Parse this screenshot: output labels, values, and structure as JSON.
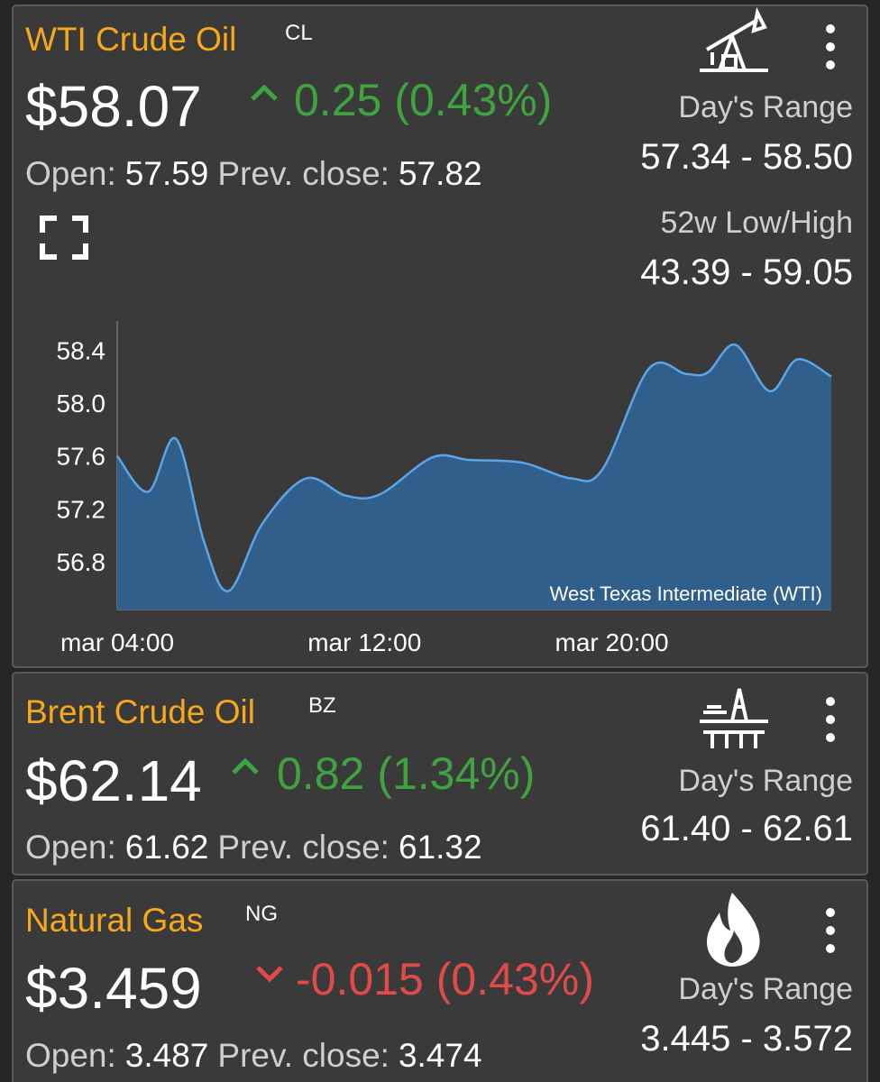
{
  "cards": [
    {
      "name": "WTI Crude Oil",
      "ticker": "CL",
      "price": "$58.07",
      "change": "0.25",
      "change_pct": "(0.43%)",
      "open_label": "Open:",
      "open": "57.59",
      "prev_close_label": "Prev. close:",
      "prev_close": "57.82",
      "range_label": "Day's Range",
      "range": "57.34 - 58.50",
      "week52_label": "52w Low/High",
      "week52": "43.39 - 59.05"
    },
    {
      "name": "Brent Crude Oil",
      "ticker": "BZ",
      "price": "$62.14",
      "change": "0.82",
      "change_pct": "(1.34%)",
      "open_label": "Open:",
      "open": "61.62",
      "prev_close_label": "Prev. close:",
      "prev_close": "61.32",
      "range_label": "Day's Range",
      "range": "61.40 - 62.61"
    },
    {
      "name": "Natural Gas",
      "ticker": "NG",
      "price": "$3.459",
      "change": "-0.015",
      "change_pct": "(0.43%)",
      "open_label": "Open:",
      "open": "3.487",
      "prev_close_label": "Prev. close:",
      "prev_close": "3.474",
      "range_label": "Day's Range",
      "range": "3.445 - 3.572"
    }
  ],
  "chart_data": {
    "type": "area",
    "x": [
      4.0,
      5.0,
      5.9,
      6.8,
      7.6,
      8.7,
      10.1,
      11.4,
      12.5,
      14.2,
      15.4,
      17.1,
      18.7,
      19.7,
      21.2,
      22.4,
      23.1,
      24.0,
      25.1,
      26.0,
      27.1
    ],
    "series": [
      {
        "name": "West Texas Intermediate (WTI)",
        "color": "#5aa6e8",
        "fill": "#2f5f8a",
        "values": [
          57.6,
          57.33,
          57.73,
          56.96,
          56.58,
          57.09,
          57.43,
          57.3,
          57.31,
          57.59,
          57.57,
          57.55,
          57.43,
          57.5,
          58.26,
          58.22,
          58.23,
          58.44,
          58.09,
          58.33,
          58.2
        ]
      }
    ],
    "xlim": [
      4.0,
      27.1
    ],
    "xticks": [
      {
        "value": 4,
        "label": "mar 04:00"
      },
      {
        "value": 12,
        "label": "mar 12:00"
      },
      {
        "value": 20,
        "label": "mar 20:00"
      }
    ],
    "ylim": [
      56.44,
      58.62
    ],
    "yticks": [
      {
        "value": 56.8,
        "label": "56.8"
      },
      {
        "value": 57.2,
        "label": "57.2"
      },
      {
        "value": 57.6,
        "label": "57.6"
      },
      {
        "value": 58.0,
        "label": "58.0"
      },
      {
        "value": 58.4,
        "label": "58.4"
      }
    ],
    "grid": false
  }
}
